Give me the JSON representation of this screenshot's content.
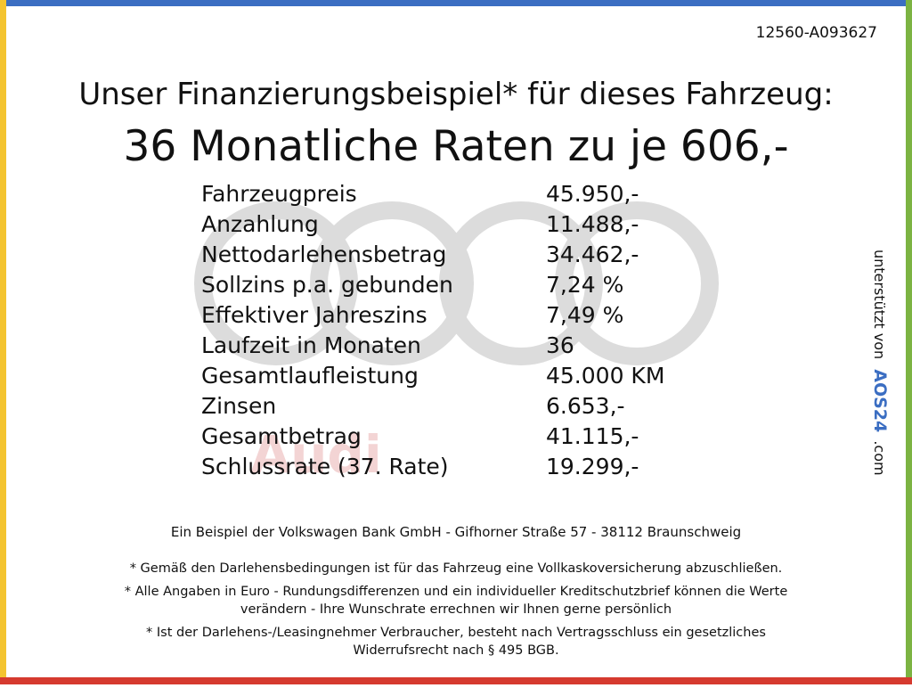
{
  "offer_id": "12560-A093627",
  "heading": "Unser Finanzierungsbeispiel* für dieses Fahrzeug:",
  "subheading": "36 Monatliche Raten zu je 606,-",
  "rows": [
    [
      "Fahrzeugpreis",
      "45.950,-"
    ],
    [
      "Anzahlung",
      "11.488,-"
    ],
    [
      "Nettodarlehensbetrag",
      "34.462,-"
    ],
    [
      "Sollzins p.a. gebunden",
      "7,24 %"
    ],
    [
      "Effektiver Jahreszins",
      "7,49 %"
    ],
    [
      "Laufzeit in Monaten",
      "36"
    ],
    [
      "Gesamtlaufleistung",
      "45.000 KM"
    ],
    [
      "Zinsen",
      "6.653,-"
    ],
    [
      "Gesamtbetrag",
      "41.115,-"
    ],
    [
      "Schlussrate (37. Rate)",
      "19.299,-"
    ]
  ],
  "watermark": "Audi",
  "side": {
    "prefix": "unterstützt von",
    "brand": "AOS24",
    "suffix": ".com"
  },
  "bank_line": "Ein Beispiel der Volkswagen Bank GmbH - Gifhorner Straße 57 - 38112 Braunschweig",
  "notes": [
    [
      "* Gemäß den Darlehensbedingungen ist für das Fahrzeug eine Vollkaskoversicherung abzuschließen."
    ],
    [
      "* Alle Angaben in Euro - Rundungsdifferenzen und ein individueller Kreditschutzbrief können die Werte",
      "verändern - Ihre Wunschrate errechnen wir Ihnen gerne persönlich"
    ],
    [
      "* Ist der Darlehens-/Leasingnehmer Verbraucher, besteht nach Vertragsschluss ein gesetzliches",
      "Widerrufsrecht nach § 495 BGB."
    ]
  ]
}
